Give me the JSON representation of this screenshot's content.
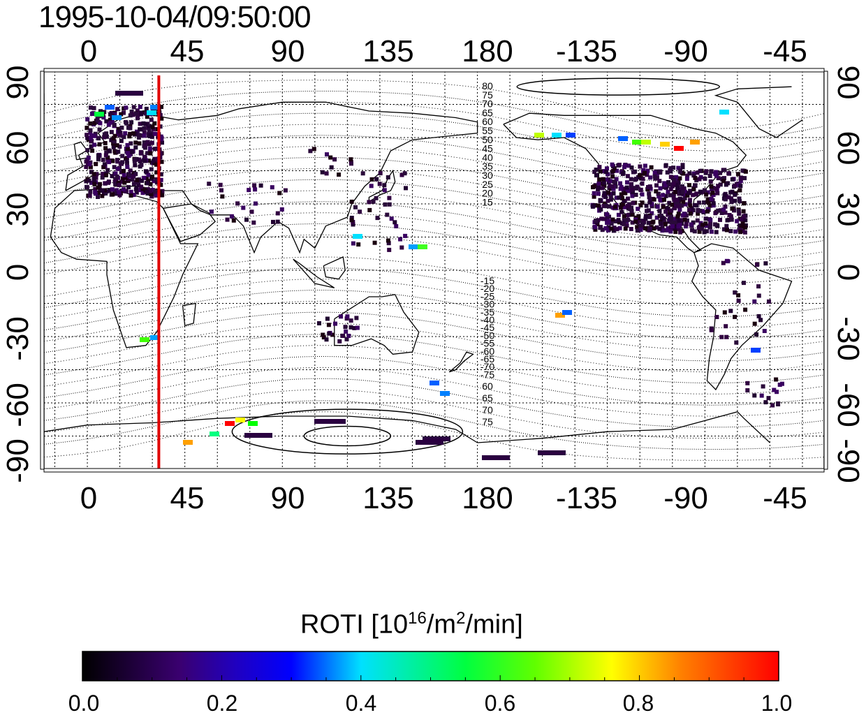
{
  "title": "1995-10-04/09:50:00",
  "axes": {
    "top_ticks": [
      "0",
      "45",
      "90",
      "135",
      "180",
      "-135",
      "-90",
      "-45"
    ],
    "bottom_ticks": [
      "0",
      "45",
      "90",
      "135",
      "180",
      "-135",
      "-90",
      "-45"
    ],
    "left_ticks": [
      "90",
      "60",
      "30",
      "0",
      "-30",
      "-60",
      "-90"
    ],
    "right_ticks": [
      "90",
      "60",
      "30",
      "0",
      "-30",
      "-60",
      "-90"
    ]
  },
  "contour_labels_north": [
    "80",
    "75",
    "70",
    "65",
    "60",
    "55",
    "50",
    "45",
    "40",
    "35",
    "30",
    "25",
    "20",
    "15"
  ],
  "contour_labels_south": [
    "-15",
    "-20",
    "-25",
    "-30",
    "-35",
    "-40",
    "-45",
    "-50",
    "-55",
    "-60",
    "-65",
    "-70",
    "-75"
  ],
  "contour_labels_south_lower": [
    "60",
    "65",
    "70",
    "75"
  ],
  "red_line_longitude": 33,
  "colorbar": {
    "title_prefix": "ROTI  [10",
    "title_sup1": "16",
    "title_mid": "/m",
    "title_sup2": "2",
    "title_suffix": "/min]",
    "ticks": [
      "0.0",
      "0.2",
      "0.4",
      "0.6",
      "0.8",
      "1.0"
    ],
    "range": [
      0.0,
      1.0
    ],
    "colors": [
      "#000000",
      "#3a0070",
      "#0000ff",
      "#00e0ff",
      "#00ff00",
      "#ffff00",
      "#ff8000",
      "#ff0000"
    ]
  },
  "map": {
    "lon_range": [
      -20,
      340
    ],
    "lat_range": [
      -90,
      90
    ],
    "grid": true,
    "projection": "equirectangular"
  }
}
